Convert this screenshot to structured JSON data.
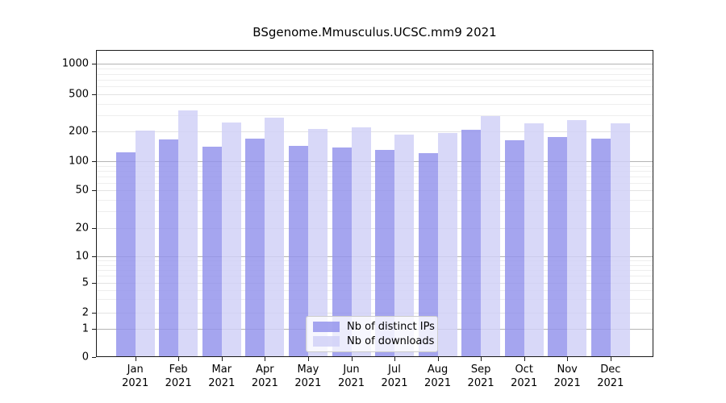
{
  "chart_data": {
    "type": "bar",
    "title": "BSgenome.Mmusculus.UCSC.mm9 2021",
    "categories": [
      "Jan",
      "Feb",
      "Mar",
      "Apr",
      "May",
      "Jun",
      "Jul",
      "Aug",
      "Sep",
      "Oct",
      "Nov",
      "Dec"
    ],
    "x_year_label": "2021",
    "series": [
      {
        "name": "Nb of distinct IPs",
        "color": "#9191eb",
        "values": [
          124,
          166,
          140,
          171,
          143,
          138,
          130,
          122,
          208,
          163,
          177,
          170
        ]
      },
      {
        "name": "Nb of downloads",
        "color": "#cfcff6",
        "values": [
          206,
          340,
          252,
          285,
          213,
          222,
          188,
          194,
          293,
          244,
          265,
          247
        ]
      }
    ],
    "series_alpha": 0.82,
    "yticks": [
      0,
      1,
      2,
      5,
      10,
      20,
      50,
      100,
      200,
      500,
      1000
    ],
    "ylim": [
      0,
      1000
    ],
    "y_scale": "log (with 0 baseline segment)",
    "xlabel": "",
    "ylabel": "",
    "grid": "on",
    "legend_position": "inside lower-center",
    "axis_color": "#1b1b1b",
    "grid_major_color": "#b4b4b4",
    "grid_mid_color": "#e3e3e3",
    "grid_minor_color": "#eeeeee"
  }
}
